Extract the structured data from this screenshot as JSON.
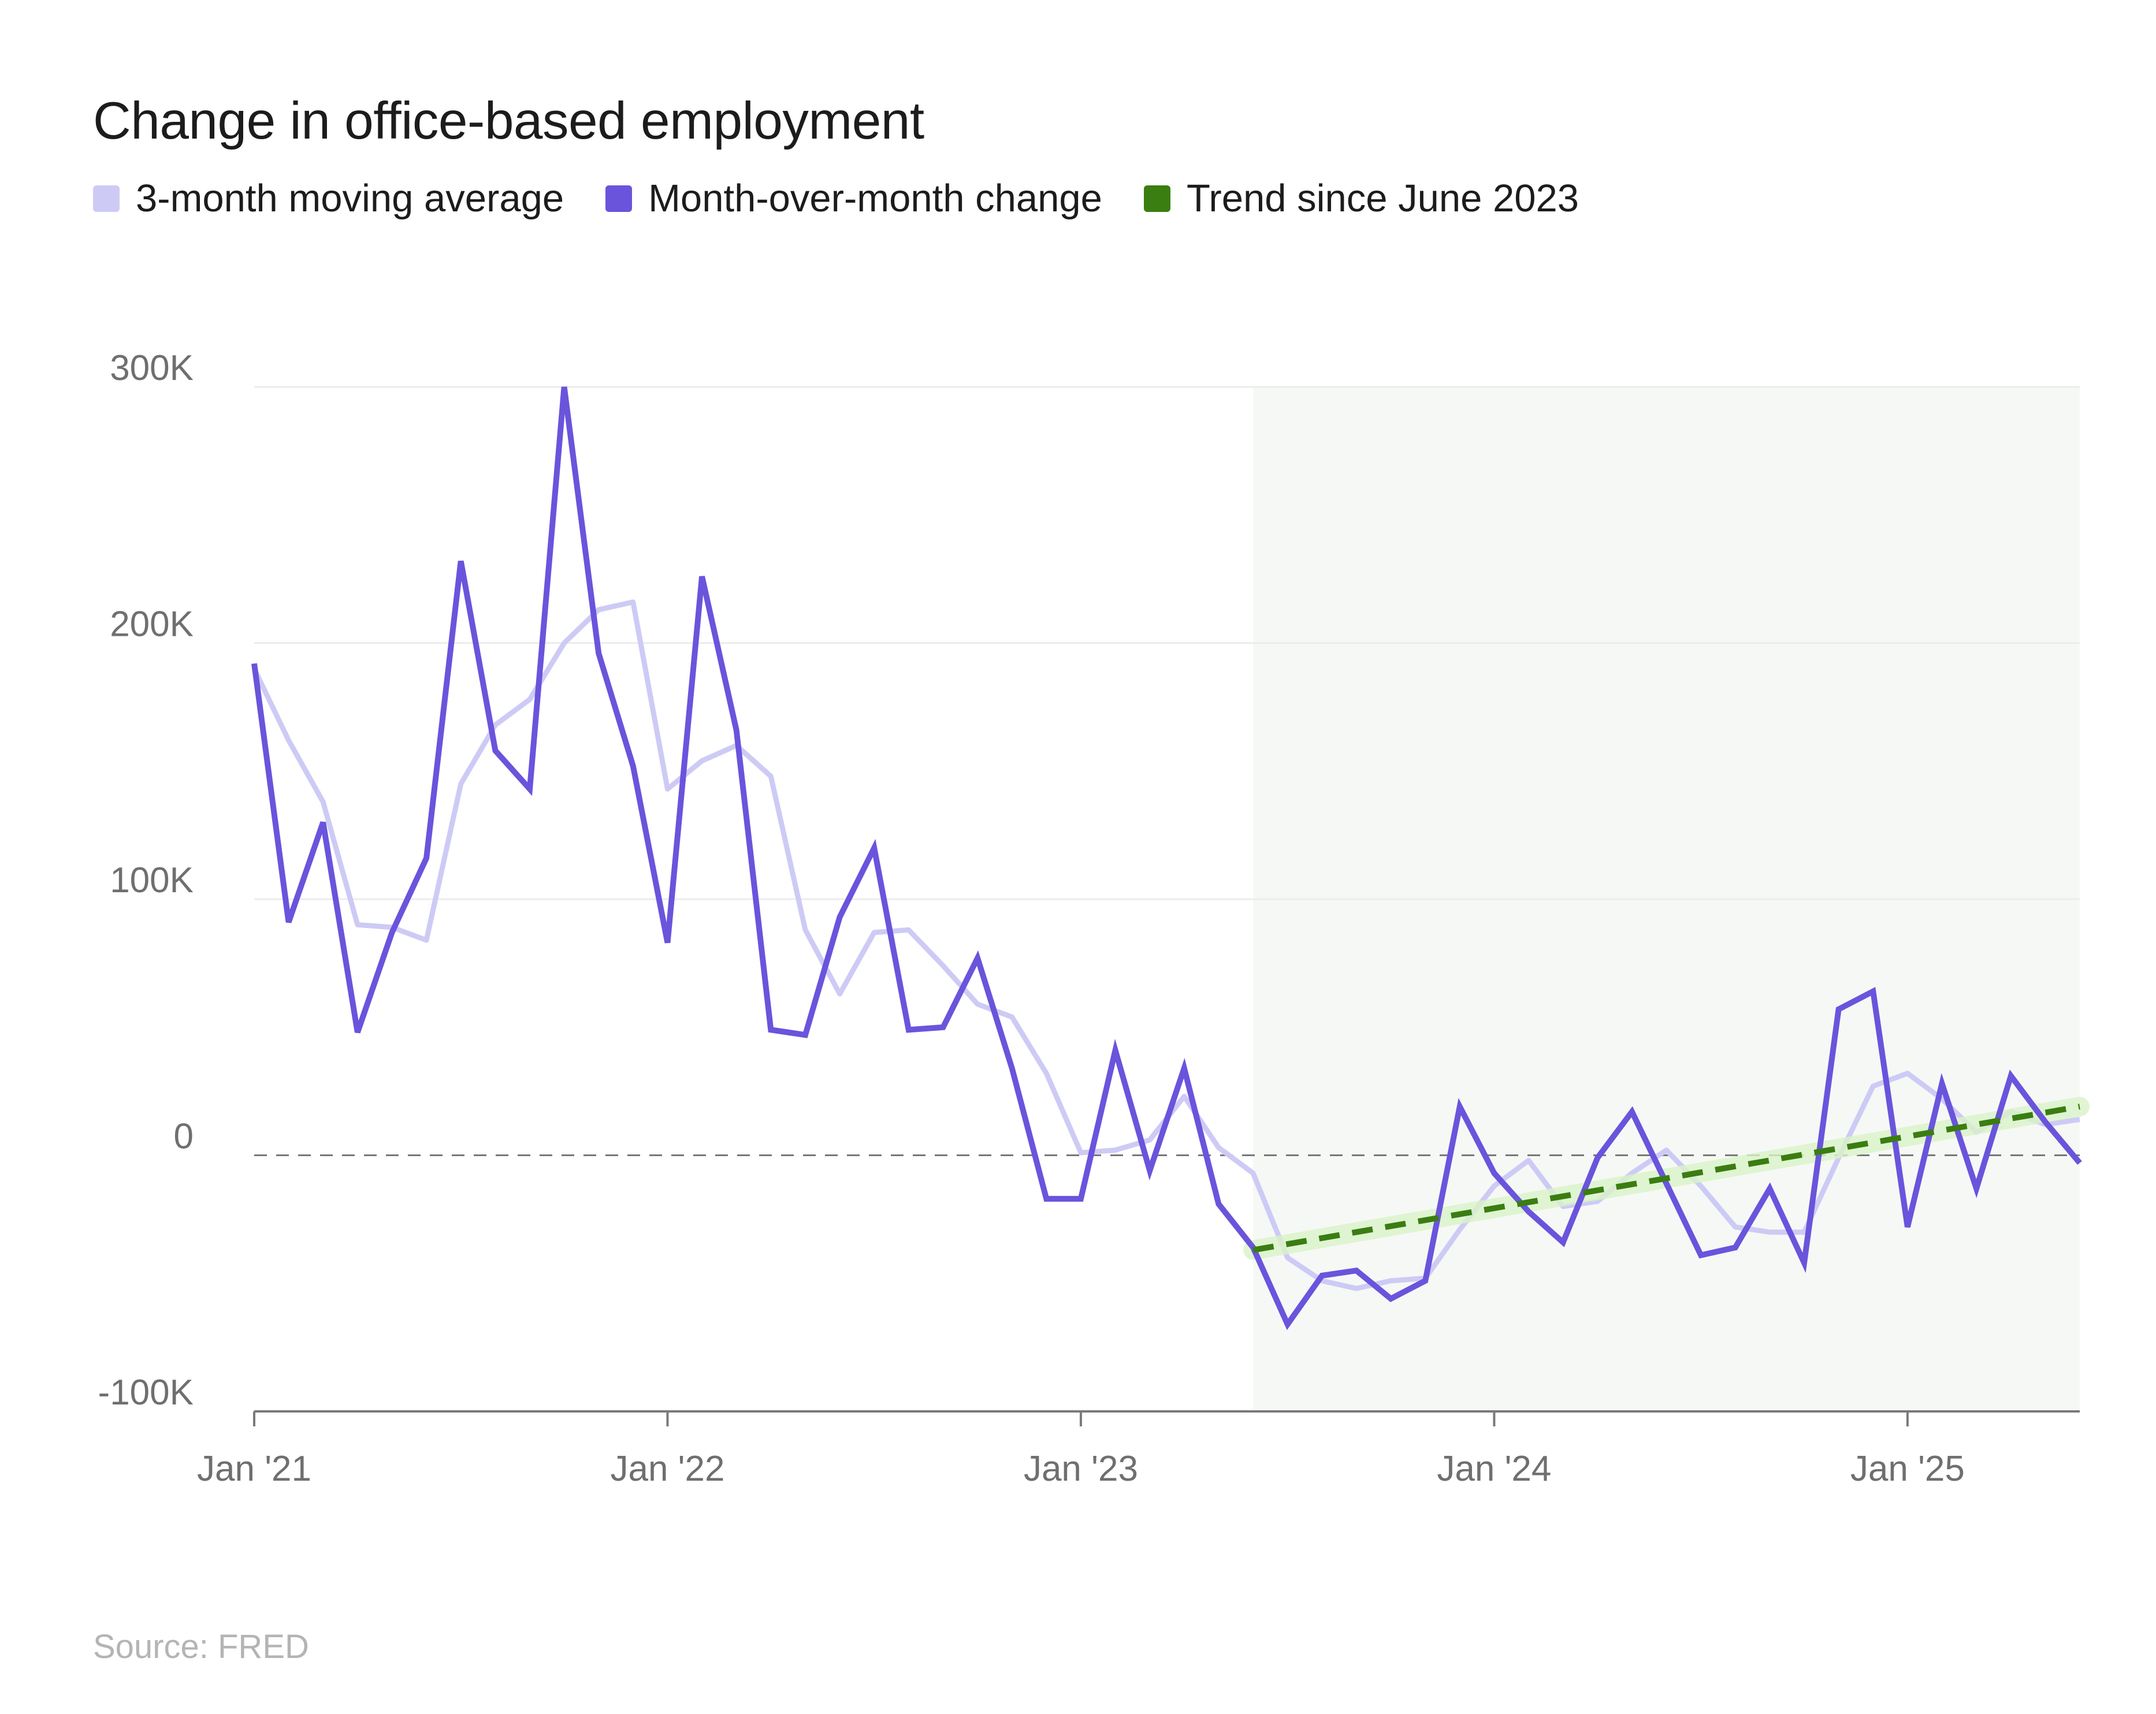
{
  "chart_data": {
    "type": "line",
    "title": "Change in office-based employment",
    "source": "Source: FRED",
    "xlabel": "",
    "ylabel": "",
    "ylim": [
      -100000,
      300000
    ],
    "y_ticks": [
      {
        "value": 300000,
        "label": "300K"
      },
      {
        "value": 200000,
        "label": "200K"
      },
      {
        "value": 100000,
        "label": "100K"
      },
      {
        "value": 0,
        "label": "0"
      },
      {
        "value": -100000,
        "label": "-100K"
      }
    ],
    "x_start": "2021-01",
    "x_end": "2025-06",
    "x_ticks": [
      {
        "month": "2021-01",
        "label": "Jan '21"
      },
      {
        "month": "2022-01",
        "label": "Jan '22"
      },
      {
        "month": "2023-01",
        "label": "Jan '23"
      },
      {
        "month": "2024-01",
        "label": "Jan '24"
      },
      {
        "month": "2025-01",
        "label": "Jan '25"
      }
    ],
    "shaded_region": {
      "from": "2023-06",
      "to": "2025-06",
      "color": "#f6f8f6"
    },
    "zero_line": {
      "value": 0,
      "style": "dashed",
      "color": "#777777"
    },
    "grid": true,
    "legend_placement": "top-left",
    "series": [
      {
        "name": "3-month moving average",
        "color": "#cdcbf5",
        "months": [
          "2021-01",
          "2021-02",
          "2021-03",
          "2021-04",
          "2021-05",
          "2021-06",
          "2021-07",
          "2021-08",
          "2021-09",
          "2021-10",
          "2021-11",
          "2021-12",
          "2022-01",
          "2022-02",
          "2022-03",
          "2022-04",
          "2022-05",
          "2022-06",
          "2022-07",
          "2022-08",
          "2022-09",
          "2022-10",
          "2022-11",
          "2022-12",
          "2023-01",
          "2023-02",
          "2023-03",
          "2023-04",
          "2023-05",
          "2023-06",
          "2023-07",
          "2023-08",
          "2023-09",
          "2023-10",
          "2023-11",
          "2023-12",
          "2024-01",
          "2024-02",
          "2024-03",
          "2024-04",
          "2024-05",
          "2024-06",
          "2024-07",
          "2024-08",
          "2024-09",
          "2024-10",
          "2024-11",
          "2024-12",
          "2025-01",
          "2025-02",
          "2025-03",
          "2025-04",
          "2025-05",
          "2025-06"
        ],
        "values": [
          190000,
          162000,
          138000,
          90000,
          89000,
          84000,
          145000,
          168000,
          178000,
          200000,
          213000,
          216000,
          143000,
          154000,
          160000,
          148000,
          88000,
          63000,
          87000,
          88000,
          74000,
          59000,
          54000,
          32000,
          1000,
          2000,
          6000,
          23000,
          3000,
          -7000,
          -40000,
          -49000,
          -52000,
          -49000,
          -48000,
          -29000,
          -12000,
          -2000,
          -20000,
          -18000,
          -7000,
          2000,
          -12000,
          -28000,
          -30000,
          -30000,
          -1000,
          27000,
          32000,
          22000,
          9000,
          17000,
          12000,
          14000
        ]
      },
      {
        "name": "Month-over-month change",
        "color": "#6a54dc",
        "months": [
          "2021-01",
          "2021-02",
          "2021-03",
          "2021-04",
          "2021-05",
          "2021-06",
          "2021-07",
          "2021-08",
          "2021-09",
          "2021-10",
          "2021-11",
          "2021-12",
          "2022-01",
          "2022-02",
          "2022-03",
          "2022-04",
          "2022-05",
          "2022-06",
          "2022-07",
          "2022-08",
          "2022-09",
          "2022-10",
          "2022-11",
          "2022-12",
          "2023-01",
          "2023-02",
          "2023-03",
          "2023-04",
          "2023-05",
          "2023-06",
          "2023-07",
          "2023-08",
          "2023-09",
          "2023-10",
          "2023-11",
          "2023-12",
          "2024-01",
          "2024-02",
          "2024-03",
          "2024-04",
          "2024-05",
          "2024-06",
          "2024-07",
          "2024-08",
          "2024-09",
          "2024-10",
          "2024-11",
          "2024-12",
          "2025-01",
          "2025-02",
          "2025-03",
          "2025-04",
          "2025-05",
          "2025-06"
        ],
        "values": [
          192000,
          91000,
          130000,
          48000,
          87000,
          116000,
          232000,
          158000,
          143000,
          300000,
          196000,
          152000,
          83000,
          226000,
          166000,
          49000,
          47000,
          93000,
          120000,
          49000,
          50000,
          77000,
          34000,
          -17000,
          -17000,
          41000,
          -6000,
          34000,
          -19000,
          -36000,
          -66000,
          -47000,
          -45000,
          -56000,
          -49000,
          19000,
          -7000,
          -22000,
          -34000,
          -1000,
          17000,
          -11000,
          -39000,
          -36000,
          -13000,
          -42000,
          57000,
          64000,
          -28000,
          28000,
          -13000,
          31000,
          13000,
          -3000
        ]
      },
      {
        "name": "Trend since June 2023",
        "color": "#3a7d11",
        "style": "dashed",
        "months": [
          "2023-06",
          "2025-06"
        ],
        "values": [
          -37000,
          19000
        ]
      }
    ]
  }
}
